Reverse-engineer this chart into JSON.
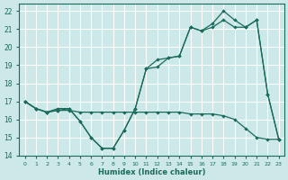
{
  "xlabel": "Humidex (Indice chaleur)",
  "xlim": [
    -0.5,
    23.5
  ],
  "ylim": [
    14,
    22.4
  ],
  "yticks": [
    14,
    15,
    16,
    17,
    18,
    19,
    20,
    21,
    22
  ],
  "xticks": [
    0,
    1,
    2,
    3,
    4,
    5,
    6,
    7,
    8,
    9,
    10,
    11,
    12,
    13,
    14,
    15,
    16,
    17,
    18,
    19,
    20,
    21,
    22,
    23
  ],
  "bg_color": "#cce8e8",
  "line_color": "#1a6b5a",
  "grid_color": "#ffffff",
  "line1_x": [
    0,
    1,
    2,
    3,
    4,
    5,
    6,
    7,
    8,
    9,
    10,
    11,
    12,
    13,
    14,
    15,
    16,
    17,
    18,
    19,
    20,
    21,
    22,
    23
  ],
  "line1_y": [
    17.0,
    16.6,
    16.4,
    16.5,
    16.5,
    16.4,
    16.4,
    16.4,
    16.4,
    16.4,
    16.4,
    16.4,
    16.4,
    16.4,
    16.4,
    16.3,
    16.3,
    16.3,
    16.2,
    16.0,
    15.5,
    15.0,
    14.9,
    14.9
  ],
  "line2_x": [
    0,
    1,
    2,
    3,
    4,
    5,
    6,
    7,
    8,
    9,
    10,
    11,
    12,
    13,
    14,
    15,
    16,
    17,
    18,
    19,
    20,
    21,
    22,
    23
  ],
  "line2_y": [
    17.0,
    16.6,
    16.4,
    16.5,
    16.6,
    15.9,
    15.0,
    14.4,
    14.4,
    15.4,
    16.6,
    18.8,
    18.9,
    19.4,
    19.5,
    21.1,
    20.9,
    21.1,
    21.5,
    21.1,
    21.1,
    21.5,
    17.4,
    14.9
  ],
  "line3_x": [
    0,
    1,
    2,
    3,
    4,
    5,
    6,
    7,
    8,
    9,
    10,
    11,
    12,
    13,
    14,
    15,
    16,
    17,
    18,
    19,
    20,
    21,
    22,
    23
  ],
  "line3_y": [
    17.0,
    16.6,
    16.4,
    16.6,
    16.6,
    15.9,
    15.0,
    14.4,
    14.4,
    15.4,
    16.6,
    18.8,
    19.3,
    19.4,
    19.5,
    21.1,
    20.9,
    21.3,
    22.0,
    21.5,
    21.1,
    21.5,
    17.4,
    14.9
  ]
}
